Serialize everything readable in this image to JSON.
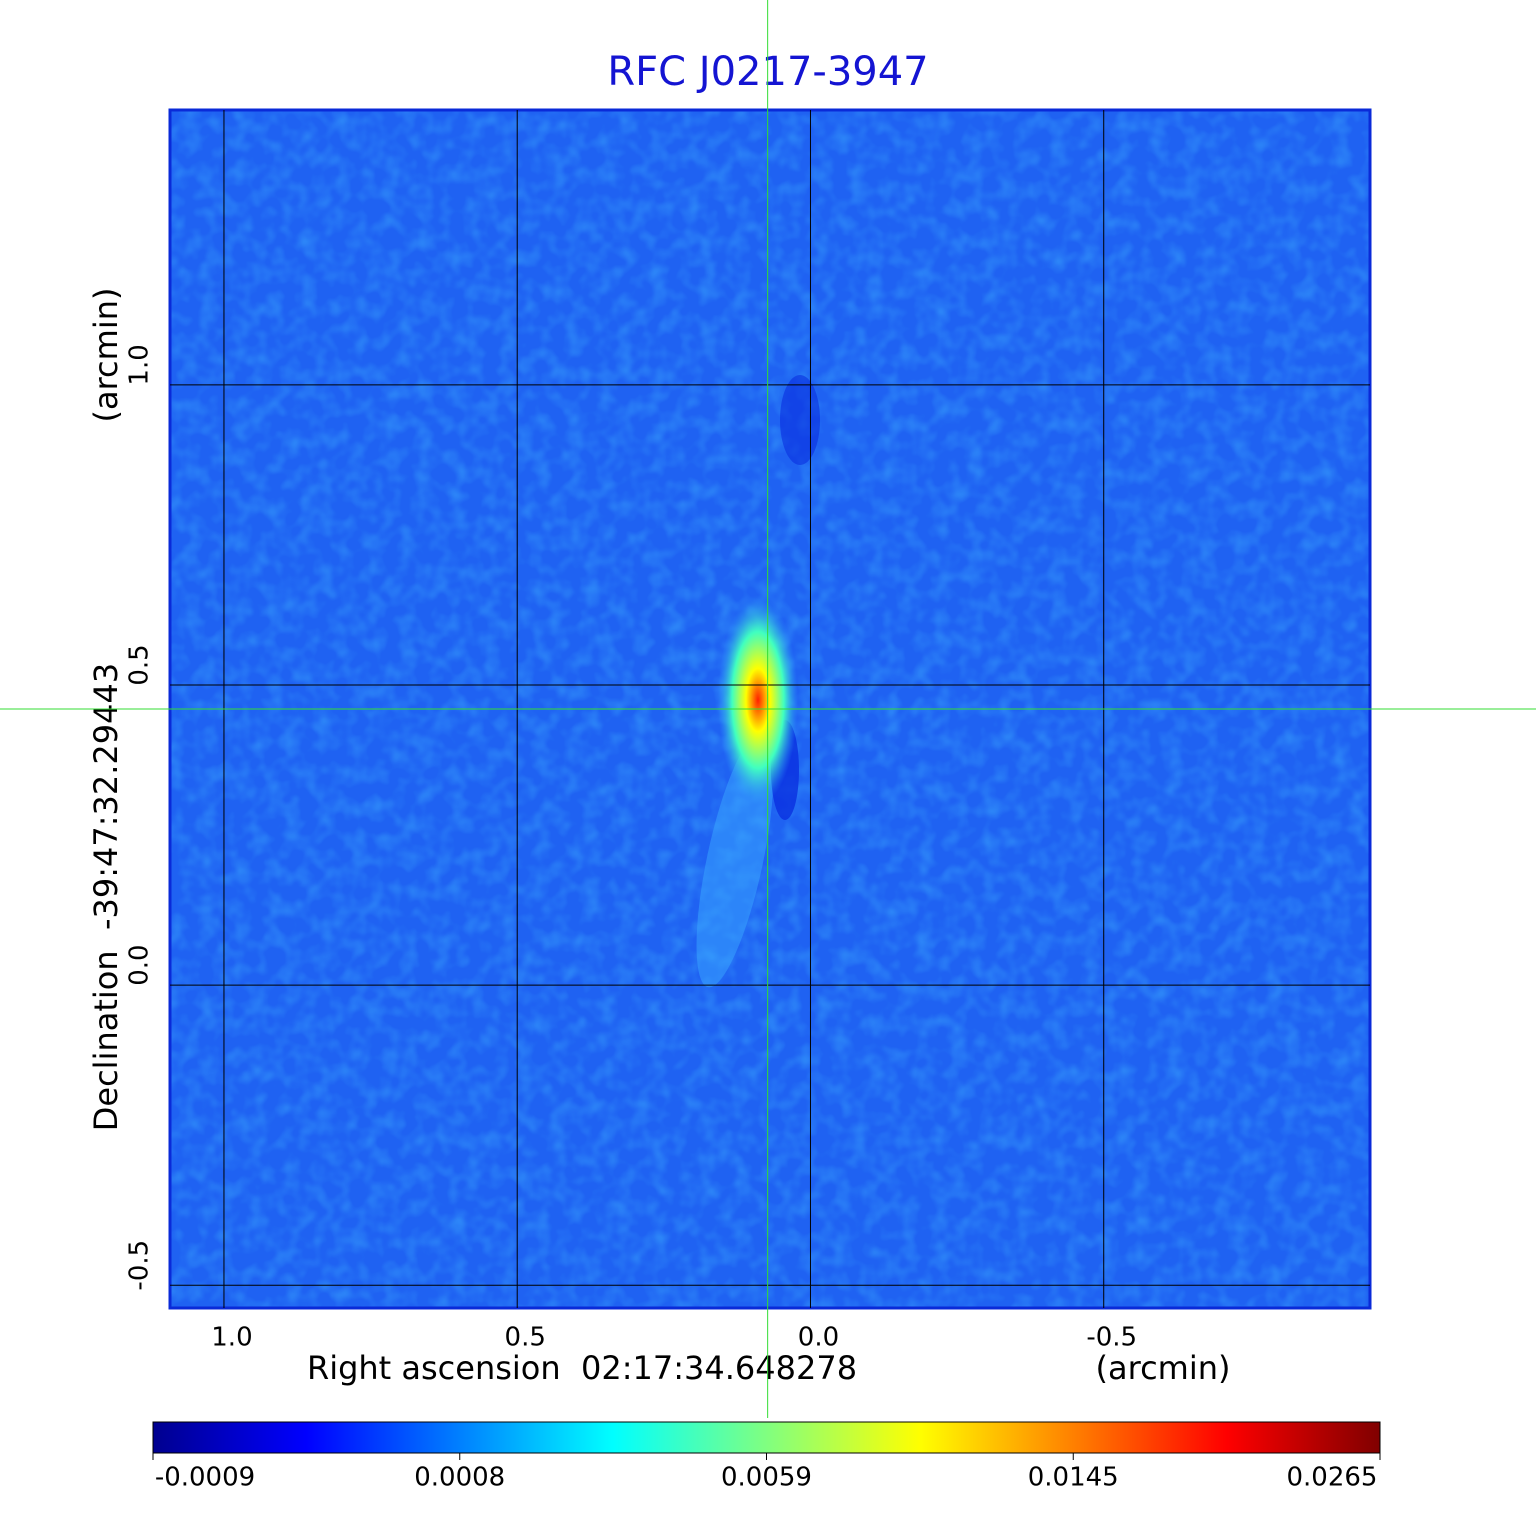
{
  "chart_data": {
    "type": "image",
    "title": "RFC J0217-3947",
    "x_label": "Right ascension  02:17:34.648278",
    "x_unit": "(arcmin)",
    "y_label": "Declination  -39:47:32.29443",
    "y_unit": "(arcmin)",
    "xlim": [
      1.092,
      -0.954
    ],
    "ylim": [
      -0.538,
      1.458
    ],
    "xticks": [
      {
        "value": 1.0,
        "label": "1.0"
      },
      {
        "value": 0.5,
        "label": "0.5"
      },
      {
        "value": 0.0,
        "label": "0.0"
      },
      {
        "value": -0.5,
        "label": "-0.5"
      }
    ],
    "yticks": [
      {
        "value": -0.5,
        "label": "-0.5"
      },
      {
        "value": 0.0,
        "label": "0.0"
      },
      {
        "value": 0.5,
        "label": "0.5"
      },
      {
        "value": 1.0,
        "label": "1.0"
      }
    ],
    "grid": true,
    "crosshair": {
      "x": 0.073,
      "y": 0.46,
      "color": "#33dd33"
    },
    "colorbar_ticks": [
      -0.0009,
      0.0008,
      0.0059,
      0.0145,
      0.0265
    ],
    "colormap": [
      "#00008f",
      "#0000ff",
      "#0080ff",
      "#00ffff",
      "#80ff80",
      "#ffff00",
      "#ff8000",
      "#ff0000",
      "#800000"
    ]
  }
}
